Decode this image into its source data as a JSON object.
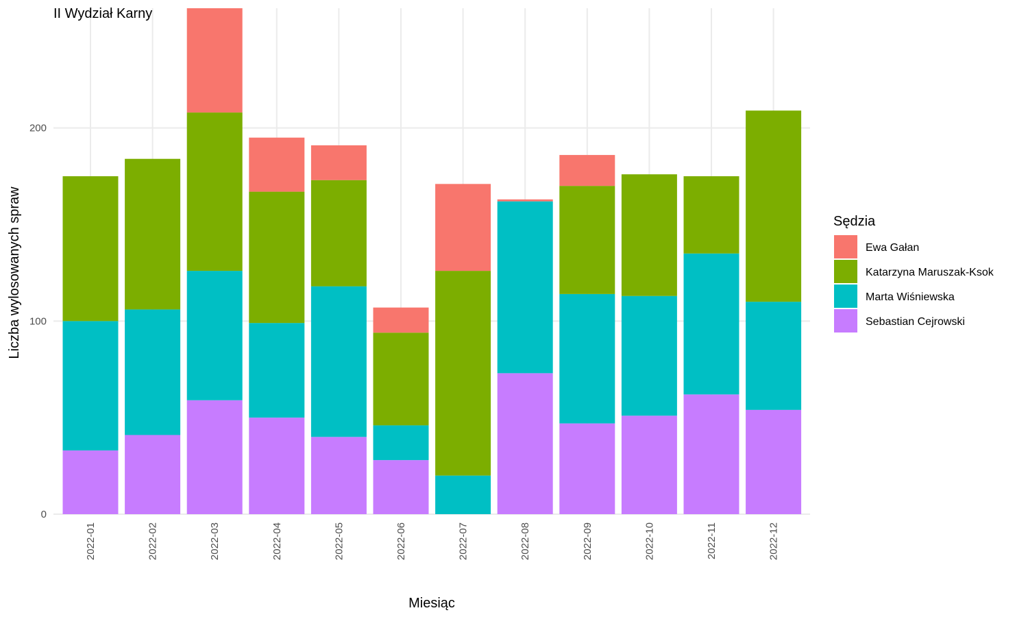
{
  "chart_data": {
    "type": "bar",
    "stacked": true,
    "title": "II Wydział Karny",
    "xlabel": "Miesiąc",
    "ylabel": "Liczba wylosowanych spraw",
    "ylim": [
      0,
      262
    ],
    "yticks": [
      0,
      100,
      200
    ],
    "grid": true,
    "legend_position": "right",
    "legend_title": "Sędzia",
    "categories": [
      "2022-01",
      "2022-02",
      "2022-03",
      "2022-04",
      "2022-05",
      "2022-06",
      "2022-07",
      "2022-08",
      "2022-09",
      "2022-10",
      "2022-11",
      "2022-12"
    ],
    "series": [
      {
        "name": "Sebastian Cejrowski",
        "color": "#C77CFF",
        "values": [
          33,
          41,
          59,
          50,
          40,
          28,
          0,
          73,
          47,
          51,
          62,
          54
        ]
      },
      {
        "name": "Marta Wiśniewska",
        "color": "#00BFC4",
        "values": [
          67,
          65,
          67,
          49,
          78,
          18,
          20,
          89,
          67,
          62,
          73,
          56
        ]
      },
      {
        "name": "Katarzyna Maruszak-Ksok",
        "color": "#7CAE00",
        "values": [
          75,
          78,
          82,
          68,
          55,
          48,
          106,
          0,
          56,
          63,
          40,
          99
        ]
      },
      {
        "name": "Ewa Gałan",
        "color": "#F8766D",
        "values": [
          0,
          0,
          54,
          28,
          18,
          13,
          45,
          1,
          16,
          0,
          0,
          0
        ]
      }
    ]
  }
}
